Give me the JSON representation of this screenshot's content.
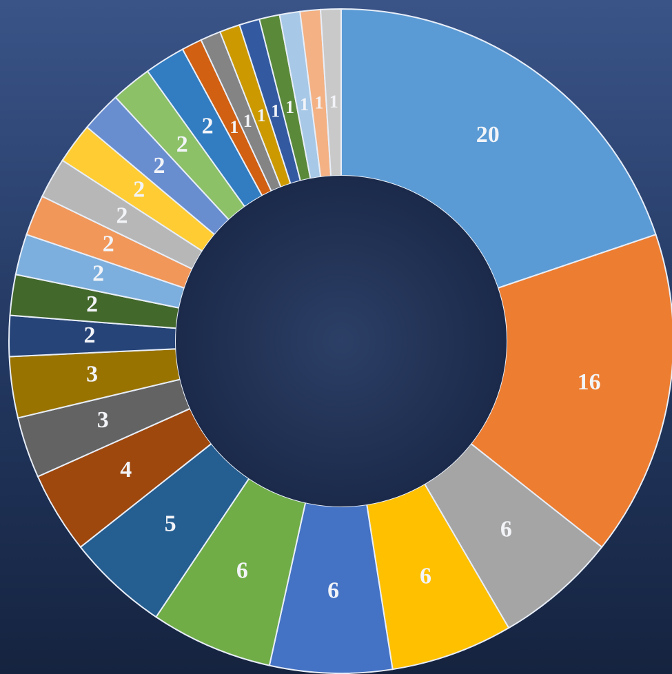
{
  "chart_data": {
    "type": "doughnut",
    "values": [
      20,
      16,
      6,
      6,
      6,
      6,
      5,
      4,
      3,
      3,
      2,
      2,
      2,
      2,
      2,
      2,
      2,
      2,
      2,
      1,
      1,
      1,
      1,
      1,
      1,
      1,
      1
    ],
    "colors": [
      "#5b9bd5",
      "#ed7d31",
      "#a5a5a5",
      "#ffc000",
      "#4472c4",
      "#70ad47",
      "#255e91",
      "#9e480e",
      "#636363",
      "#997300",
      "#264478",
      "#43682b",
      "#7cafdd",
      "#f1975a",
      "#b7b7b7",
      "#ffcd33",
      "#698ed0",
      "#8cc168",
      "#327dc2",
      "#d26012",
      "#848484",
      "#cc9a00",
      "#335aa1",
      "#5a8a39",
      "#a7c8e7",
      "#f4b183",
      "#c9c9c9"
    ]
  }
}
